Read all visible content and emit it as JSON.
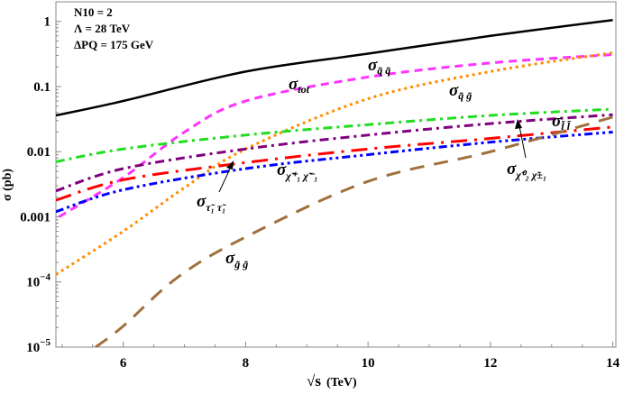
{
  "chart_data": {
    "type": "line",
    "xlabel": "√s (TeV)",
    "xlabel_root": "√s",
    "xlabel_unit": "(TeV)",
    "ylabel": "σ (pb)",
    "xlim": [
      4.9,
      14.05
    ],
    "ylim": [
      1e-05,
      2
    ],
    "yscale": "log",
    "grid": false,
    "xticks": [
      "6",
      "8",
      "10",
      "12",
      "14"
    ],
    "yticks": [
      {
        "value": 1,
        "label": "1"
      },
      {
        "value": 0.1,
        "label": "0.1"
      },
      {
        "value": 0.01,
        "label": "0.01"
      },
      {
        "value": 0.001,
        "label": "0.001"
      },
      {
        "value": 0.0001,
        "label": "10",
        "exp": "−4"
      },
      {
        "value": 1e-05,
        "label": "10",
        "exp": "−5"
      }
    ],
    "annotations": [
      "N10 = 2",
      "Λ = 28 TeV",
      "ΔPQ = 175 GeV"
    ],
    "series": [
      {
        "name": "σ tot",
        "color": "#000000",
        "dash": "solid",
        "x": [
          4.9,
          6,
          8,
          10,
          12,
          14
        ],
        "y": [
          0.036,
          0.06,
          0.17,
          0.32,
          0.6,
          1.05
        ]
      },
      {
        "name": "σ q̃ q̃",
        "color": "#ff33ff",
        "dash": "dashed",
        "x": [
          4.95,
          6,
          7,
          8,
          10,
          12,
          14
        ],
        "y": [
          0.001,
          0.004,
          0.02,
          0.06,
          0.14,
          0.23,
          0.31
        ]
      },
      {
        "name": "σ q̃ g̃",
        "color": "#ff8c00",
        "dash": "dotted",
        "x": [
          4.9,
          6,
          7,
          8,
          10,
          12,
          14
        ],
        "y": [
          0.00013,
          0.0006,
          0.0028,
          0.011,
          0.065,
          0.17,
          0.33
        ]
      },
      {
        "name": "σ l̃ l̃",
        "color": "#22dd22",
        "dash": "dashdot",
        "x": [
          4.9,
          6,
          8,
          10,
          12,
          14
        ],
        "y": [
          0.007,
          0.011,
          0.018,
          0.026,
          0.036,
          0.045
        ]
      },
      {
        "name": "σ χ̃0 2 χ̃± 1",
        "color": "#800080",
        "dash": "dashdot",
        "x": [
          4.9,
          6,
          8,
          10,
          12,
          14
        ],
        "y": [
          0.0025,
          0.0055,
          0.011,
          0.018,
          0.027,
          0.037
        ]
      },
      {
        "name": "σ τ̃1 τ̃1",
        "color": "#ff0000",
        "dash": "longdashdot",
        "x": [
          4.9,
          6,
          8,
          10,
          12,
          14
        ],
        "y": [
          0.0018,
          0.0037,
          0.0068,
          0.011,
          0.016,
          0.024
        ]
      },
      {
        "name": "σ χ̃+ 1 χ̃− 1",
        "color": "#0000ff",
        "dash": "dashdotdot",
        "x": [
          4.9,
          6,
          8,
          10,
          12,
          14
        ],
        "y": [
          0.0012,
          0.0026,
          0.0055,
          0.009,
          0.014,
          0.02
        ]
      },
      {
        "name": "σ g̃ g̃",
        "color": "#a0703c",
        "dash": "longdash",
        "x": [
          5.55,
          6,
          6.9,
          8,
          10,
          12,
          14
        ],
        "y": [
          1e-05,
          2.1e-05,
          0.00012,
          0.00049,
          0.0035,
          0.01,
          0.034
        ]
      }
    ],
    "labels": {
      "tot": {
        "sigma": "σ",
        "sub": "tot"
      },
      "qq": {
        "sigma": "σ",
        "sub": "q̃ q̃"
      },
      "qg": {
        "sigma": "σ",
        "sub": "q̃ g̃"
      },
      "ll": {
        "sigma": "σ",
        "sub": "l̃ l̃"
      },
      "neu": {
        "sigma": "σ",
        "sub": "χ̃⁰₂ χ̃±₁"
      },
      "stau": {
        "sigma": "σ",
        "sub": "τ̃₁ τ̃₁"
      },
      "cha": {
        "sigma": "σ",
        "sub": "χ̃⁺₁ χ̃⁻₁"
      },
      "gg": {
        "sigma": "σ",
        "sub": "g̃ g̃"
      }
    }
  }
}
